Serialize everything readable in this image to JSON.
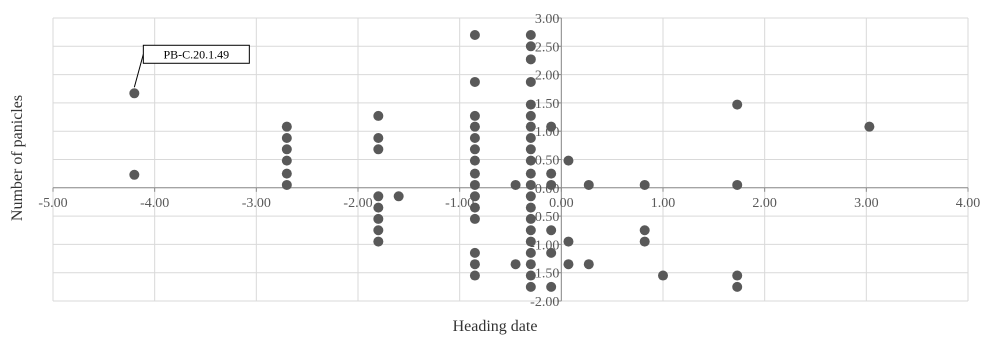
{
  "chart_data": {
    "type": "scatter",
    "xlabel": "Heading date",
    "ylabel": "Number of panicles",
    "xlim": [
      -5,
      4
    ],
    "ylim": [
      -2,
      3
    ],
    "x_ticks": [
      "-5.00",
      "-4.00",
      "-3.00",
      "-2.00",
      "-1.00",
      "0.00",
      "1.00",
      "2.00",
      "3.00",
      "4.00"
    ],
    "y_ticks": [
      "3.00",
      "2.50",
      "2.00",
      "1.50",
      "1.00",
      "0.50",
      "0.00",
      "-0.50",
      "-1.00",
      "-1.50",
      "-2.00"
    ],
    "grid": true,
    "marker_color": "#595959",
    "grid_color": "#d9d9d9",
    "annotation": {
      "text": "PB-C.20.1.49",
      "x": -4.2,
      "y": 1.67
    },
    "points": [
      {
        "x": -4.2,
        "y": 1.67
      },
      {
        "x": -4.2,
        "y": 0.23
      },
      {
        "x": -2.7,
        "y": 1.08
      },
      {
        "x": -2.7,
        "y": 0.88
      },
      {
        "x": -2.7,
        "y": 0.68
      },
      {
        "x": -2.7,
        "y": 0.48
      },
      {
        "x": -2.7,
        "y": 0.25
      },
      {
        "x": -2.7,
        "y": 0.05
      },
      {
        "x": -1.8,
        "y": 1.27
      },
      {
        "x": -1.8,
        "y": 0.88
      },
      {
        "x": -1.8,
        "y": 0.68
      },
      {
        "x": -1.8,
        "y": -0.15
      },
      {
        "x": -1.8,
        "y": -0.35
      },
      {
        "x": -1.8,
        "y": -0.55
      },
      {
        "x": -1.8,
        "y": -0.75
      },
      {
        "x": -1.8,
        "y": -0.95
      },
      {
        "x": -1.6,
        "y": -0.15
      },
      {
        "x": -0.85,
        "y": 2.7
      },
      {
        "x": -0.85,
        "y": 1.87
      },
      {
        "x": -0.85,
        "y": 1.27
      },
      {
        "x": -0.85,
        "y": 1.08
      },
      {
        "x": -0.85,
        "y": 0.88
      },
      {
        "x": -0.85,
        "y": 0.68
      },
      {
        "x": -0.85,
        "y": 0.48
      },
      {
        "x": -0.85,
        "y": 0.25
      },
      {
        "x": -0.85,
        "y": 0.05
      },
      {
        "x": -0.85,
        "y": -0.15
      },
      {
        "x": -0.85,
        "y": -0.35
      },
      {
        "x": -0.85,
        "y": -0.55
      },
      {
        "x": -0.85,
        "y": -1.15
      },
      {
        "x": -0.85,
        "y": -1.35
      },
      {
        "x": -0.85,
        "y": -1.55
      },
      {
        "x": -0.45,
        "y": 0.05
      },
      {
        "x": -0.45,
        "y": -1.35
      },
      {
        "x": -0.3,
        "y": 2.7
      },
      {
        "x": -0.3,
        "y": 2.5
      },
      {
        "x": -0.3,
        "y": 2.27
      },
      {
        "x": -0.3,
        "y": 1.87
      },
      {
        "x": -0.3,
        "y": 1.47
      },
      {
        "x": -0.3,
        "y": 1.27
      },
      {
        "x": -0.3,
        "y": 1.08
      },
      {
        "x": -0.3,
        "y": 0.88
      },
      {
        "x": -0.3,
        "y": 0.68
      },
      {
        "x": -0.3,
        "y": 0.48
      },
      {
        "x": -0.3,
        "y": 0.25
      },
      {
        "x": -0.3,
        "y": 0.05
      },
      {
        "x": -0.3,
        "y": -0.15
      },
      {
        "x": -0.3,
        "y": -0.35
      },
      {
        "x": -0.3,
        "y": -0.55
      },
      {
        "x": -0.3,
        "y": -0.75
      },
      {
        "x": -0.3,
        "y": -0.95
      },
      {
        "x": -0.3,
        "y": -1.15
      },
      {
        "x": -0.3,
        "y": -1.35
      },
      {
        "x": -0.3,
        "y": -1.55
      },
      {
        "x": -0.3,
        "y": -1.75
      },
      {
        "x": -0.1,
        "y": 1.08
      },
      {
        "x": -0.1,
        "y": 0.25
      },
      {
        "x": -0.1,
        "y": 0.05
      },
      {
        "x": -0.1,
        "y": -0.75
      },
      {
        "x": -0.1,
        "y": -1.15
      },
      {
        "x": -0.1,
        "y": -1.75
      },
      {
        "x": 0.07,
        "y": 0.48
      },
      {
        "x": 0.07,
        "y": -0.95
      },
      {
        "x": 0.07,
        "y": -1.35
      },
      {
        "x": 0.27,
        "y": 0.05
      },
      {
        "x": 0.27,
        "y": -1.35
      },
      {
        "x": 0.82,
        "y": 0.05
      },
      {
        "x": 0.82,
        "y": -0.75
      },
      {
        "x": 0.82,
        "y": -0.95
      },
      {
        "x": 1.0,
        "y": -1.55
      },
      {
        "x": 1.73,
        "y": 1.47
      },
      {
        "x": 1.73,
        "y": 0.05
      },
      {
        "x": 1.73,
        "y": -1.55
      },
      {
        "x": 1.73,
        "y": -1.75
      },
      {
        "x": 3.03,
        "y": 1.08
      }
    ]
  }
}
